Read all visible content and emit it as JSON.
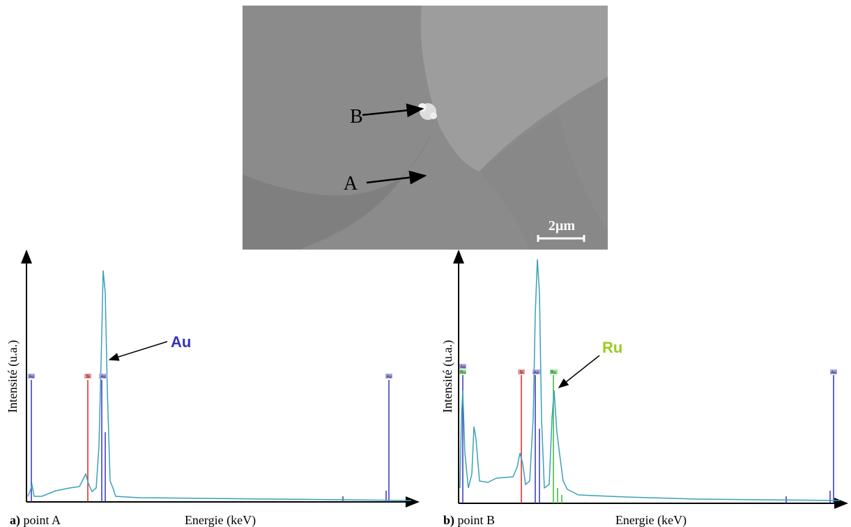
{
  "image": {
    "labels": [
      "B",
      "A"
    ],
    "scale_bar": "2µm"
  },
  "panels": [
    {
      "letter": "a)",
      "caption": "point A",
      "y_axis": "Intensité (u.a.)",
      "x_axis": "Energie (keV)",
      "element": "Au",
      "peak_labels": [
        "Au",
        "Si",
        "Au",
        "Au"
      ]
    },
    {
      "letter": "b)",
      "caption": "point B",
      "y_axis": "Intensité (u.a.)",
      "x_axis": "Energie (keV)",
      "element": "Ru",
      "peak_labels": [
        "Au",
        "Ru",
        "Si",
        "Au",
        "Ru",
        "Au"
      ]
    }
  ]
}
